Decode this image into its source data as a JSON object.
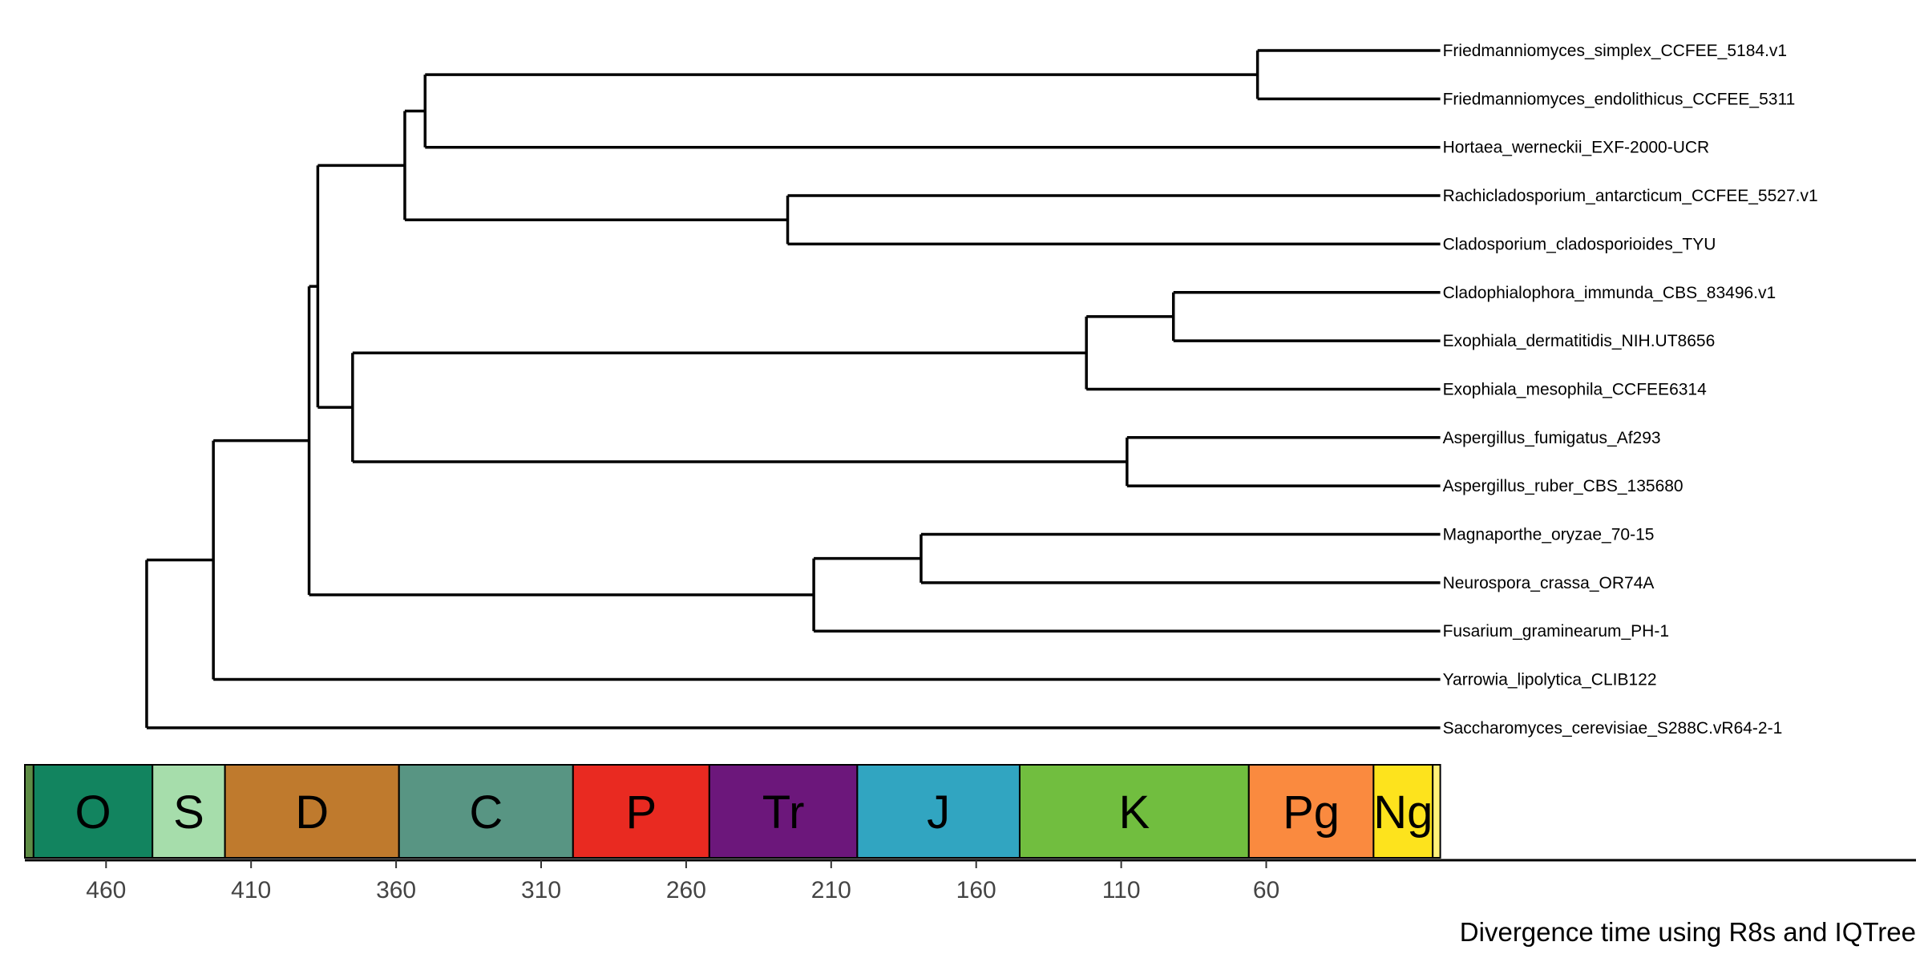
{
  "chart_data": {
    "type": "phylogenetic-tree",
    "title": "",
    "xlabel": "Divergence time using R8s and IQTree",
    "x_unit": "million years ago",
    "x_ticks": [
      460,
      410,
      360,
      310,
      260,
      210,
      160,
      110,
      60
    ],
    "x_range": [
      488,
      0
    ],
    "taxa": [
      "Friedmanniomyces_simplex_CCFEE_5184.v1",
      "Friedmanniomyces_endolithicus_CCFEE_5311",
      "Hortaea_werneckii_EXF-2000-UCR",
      "Rachicladosporium_antarcticum_CCFEE_5527.v1",
      "Cladosporium_cladosporioides_TYU",
      "Cladophialophora_immunda_CBS_83496.v1",
      "Exophiala_dermatitidis_NIH.UT8656",
      "Exophiala_mesophila_CCFEE6314",
      "Aspergillus_fumigatus_Af293",
      "Aspergillus_ruber_CBS_135680",
      "Magnaporthe_oryzae_70-15",
      "Neurospora_crassa_OR74A",
      "Fusarium_graminearum_PH-1",
      "Yarrowia_lipolytica_CLIB122",
      "Saccharomyces_cerevisiae_S288C.vR64-2-1"
    ],
    "nodes": [
      {
        "id": "n_fried",
        "age": 63,
        "children": [
          0,
          1
        ]
      },
      {
        "id": "n_fried_hort",
        "age": 350,
        "children": [
          "n_fried",
          2
        ]
      },
      {
        "id": "n_clado",
        "age": 225,
        "children": [
          3,
          4
        ]
      },
      {
        "id": "n_dothideo",
        "age": 357,
        "children": [
          "n_fried_hort",
          "n_clado"
        ]
      },
      {
        "id": "n_clado_exo",
        "age": 92,
        "children": [
          5,
          6
        ]
      },
      {
        "id": "n_chaeto",
        "age": 122,
        "children": [
          "n_clado_exo",
          7
        ]
      },
      {
        "id": "n_asp",
        "age": 108,
        "children": [
          8,
          9
        ]
      },
      {
        "id": "n_eurotio",
        "age": 375,
        "children": [
          "n_chaeto",
          "n_asp"
        ]
      },
      {
        "id": "n_dothideo_eurotio",
        "age": 387,
        "children": [
          "n_dothideo",
          "n_eurotio"
        ]
      },
      {
        "id": "n_magna_neuro",
        "age": 179,
        "children": [
          10,
          11
        ]
      },
      {
        "id": "n_sordario",
        "age": 216,
        "children": [
          "n_magna_neuro",
          12
        ]
      },
      {
        "id": "n_pezizo",
        "age": 390,
        "children": [
          "n_dothideo_eurotio",
          "n_sordario"
        ]
      },
      {
        "id": "n_yarrowia",
        "age": 423,
        "children": [
          "n_pezizo",
          13
        ]
      },
      {
        "id": "n_root",
        "age": 446,
        "children": [
          "n_yarrowia",
          14
        ]
      }
    ],
    "periods": [
      {
        "label": "",
        "start": 488,
        "end": 485,
        "color": "#5e8c45"
      },
      {
        "label": "O",
        "start": 485,
        "end": 444,
        "color": "#12845f"
      },
      {
        "label": "S",
        "start": 444,
        "end": 419,
        "color": "#a6ddab"
      },
      {
        "label": "D",
        "start": 419,
        "end": 359,
        "color": "#bf7a2d"
      },
      {
        "label": "C",
        "start": 359,
        "end": 299,
        "color": "#589583"
      },
      {
        "label": "P",
        "start": 299,
        "end": 252,
        "color": "#e92a21"
      },
      {
        "label": "Tr",
        "start": 252,
        "end": 201,
        "color": "#6c177b"
      },
      {
        "label": "J",
        "start": 201,
        "end": 145,
        "color": "#31a5c1"
      },
      {
        "label": "K",
        "start": 145,
        "end": 66,
        "color": "#71be3f"
      },
      {
        "label": "Pg",
        "start": 66,
        "end": 23,
        "color": "#fa8a3f"
      },
      {
        "label": "Ng",
        "start": 23,
        "end": 2.6,
        "color": "#fde31d"
      },
      {
        "label": "",
        "start": 2.6,
        "end": 0,
        "color": "#fff278"
      }
    ]
  }
}
